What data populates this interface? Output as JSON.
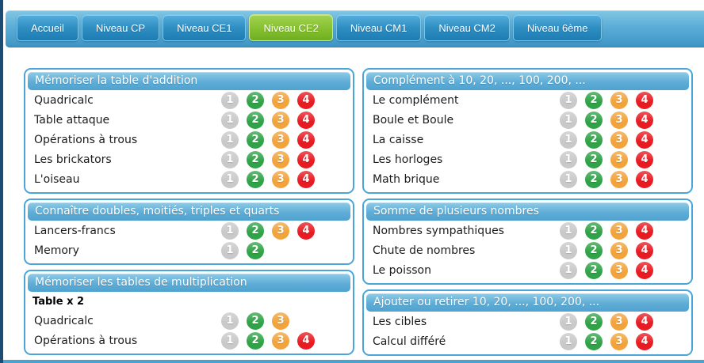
{
  "tabs": [
    {
      "label": "Accueil",
      "active": false
    },
    {
      "label": "Niveau CP",
      "active": false
    },
    {
      "label": "Niveau CE1",
      "active": false
    },
    {
      "label": "Niveau CE2",
      "active": true
    },
    {
      "label": "Niveau CM1",
      "active": false
    },
    {
      "label": "Niveau CM2",
      "active": false
    },
    {
      "label": "Niveau 6ème",
      "active": false
    }
  ],
  "columns": [
    {
      "panels": [
        {
          "title": "Mémoriser la table d'addition",
          "rows": [
            {
              "label": "Quadricalc",
              "levels": [
                1,
                2,
                3,
                4
              ]
            },
            {
              "label": "Table attaque",
              "levels": [
                1,
                2,
                3,
                4
              ]
            },
            {
              "label": "Opérations à trous",
              "levels": [
                1,
                2,
                3,
                4
              ]
            },
            {
              "label": "Les brickators",
              "levels": [
                1,
                2,
                3,
                4
              ]
            },
            {
              "label": "L'oiseau",
              "levels": [
                1,
                2,
                3,
                4
              ]
            }
          ]
        },
        {
          "title": "Connaître doubles, moitiés, triples et quarts",
          "rows": [
            {
              "label": "Lancers-francs",
              "levels": [
                1,
                2,
                3,
                4
              ]
            },
            {
              "label": "Memory",
              "levels": [
                1,
                2
              ]
            }
          ]
        },
        {
          "title": "Mémoriser les tables de multiplication",
          "rows": [
            {
              "type": "subheader",
              "label": "Table x 2"
            },
            {
              "label": "Quadricalc",
              "levels": [
                1,
                2,
                3
              ]
            },
            {
              "label": "Opérations à trous",
              "levels": [
                1,
                2,
                3,
                4
              ]
            }
          ]
        }
      ]
    },
    {
      "panels": [
        {
          "title": "Complément à 10, 20, ..., 100, 200, ...",
          "rows": [
            {
              "label": "Le complément",
              "levels": [
                1,
                2,
                3,
                4
              ]
            },
            {
              "label": "Boule et Boule",
              "levels": [
                1,
                2,
                3,
                4
              ]
            },
            {
              "label": "La caisse",
              "levels": [
                1,
                2,
                3,
                4
              ]
            },
            {
              "label": "Les horloges",
              "levels": [
                1,
                2,
                3,
                4
              ]
            },
            {
              "label": "Math brique",
              "levels": [
                1,
                2,
                3,
                4
              ]
            }
          ]
        },
        {
          "title": "Somme de plusieurs nombres",
          "rows": [
            {
              "label": "Nombres sympathiques",
              "levels": [
                1,
                2,
                3,
                4
              ]
            },
            {
              "label": "Chute de nombres",
              "levels": [
                1,
                2,
                3,
                4
              ]
            },
            {
              "label": "Le poisson",
              "levels": [
                1,
                2,
                3,
                4
              ]
            }
          ]
        },
        {
          "title": "Ajouter ou retirer 10, 20, ..., 100, 200, ...",
          "rows": [
            {
              "label": "Les cibles",
              "levels": [
                1,
                2,
                3,
                4
              ]
            },
            {
              "label": "Calcul différé",
              "levels": [
                1,
                2,
                3,
                4
              ]
            }
          ]
        }
      ]
    }
  ],
  "colors": {
    "badge_level_1": "#c9c9c9",
    "badge_level_2": "#30a348",
    "badge_level_3": "#f2a33c",
    "badge_level_4": "#e81b22",
    "panel_border": "#4aa6d8",
    "tab_active_green": "#86c030",
    "tab_inactive_blue": "#2f8ec2",
    "bar_blue": "#4aa3cf",
    "page_edge_navy": "#1d4c72"
  }
}
